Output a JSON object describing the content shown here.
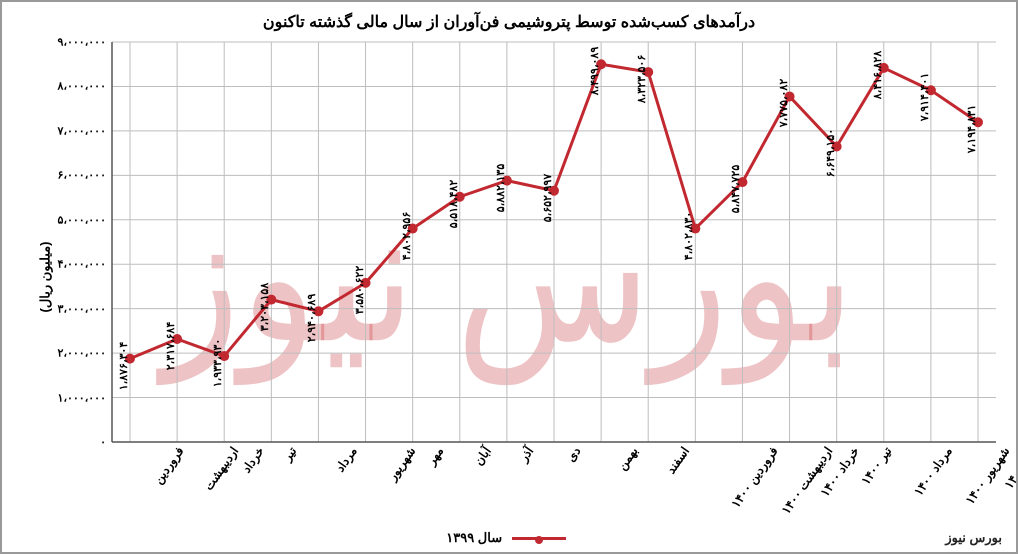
{
  "chart": {
    "type": "line",
    "title": "درآمدهای کسب‌شده توسط پتروشیمی فن‌آوران از سال مالی گذشته تاکنون",
    "y_axis_label": "(میلیون ریال)",
    "legend_label": "سال ۱۳۹۹",
    "footer_brand": "بورس نیوز",
    "watermark_text": "بورس نیوز",
    "line_color": "#c2282f",
    "marker_color": "#c2282f",
    "marker_radius": 5,
    "line_width": 3,
    "grid_color": "#bdbdbd",
    "grid_width": 1,
    "background_color": "#ffffff",
    "title_fontsize": 16,
    "label_fontsize": 12,
    "tick_fontsize": 11,
    "ylim": [
      0,
      9000000
    ],
    "y_ticks": [
      {
        "v": 0,
        "label": "۰"
      },
      {
        "v": 1000000,
        "label": "۱،۰۰۰،۰۰۰"
      },
      {
        "v": 2000000,
        "label": "۲،۰۰۰،۰۰۰"
      },
      {
        "v": 3000000,
        "label": "۳،۰۰۰،۰۰۰"
      },
      {
        "v": 4000000,
        "label": "۴،۰۰۰،۰۰۰"
      },
      {
        "v": 5000000,
        "label": "۵،۰۰۰،۰۰۰"
      },
      {
        "v": 6000000,
        "label": "۶،۰۰۰،۰۰۰"
      },
      {
        "v": 7000000,
        "label": "۷،۰۰۰،۰۰۰"
      },
      {
        "v": 8000000,
        "label": "۸،۰۰۰،۰۰۰"
      },
      {
        "v": 9000000,
        "label": "۹،۰۰۰،۰۰۰"
      }
    ],
    "categories": [
      "فروردین",
      "اردیبهشت",
      "خرداد",
      "تیر",
      "مرداد",
      "شهریور",
      "مهر",
      "آبان",
      "آذر",
      "دی",
      "بهمن",
      "اسفند",
      "فروردین ۱۴۰۰",
      "اردیبهشت ۱۴۰۰",
      "خرداد ۱۴۰۰",
      "تیر ۱۴۰۰",
      "مرداد ۱۴۰۰",
      "شهریور ۱۴۰۰",
      "مهر ۱۴۰۰"
    ],
    "values": [
      1876304,
      2317684,
      1933930,
      3203158,
      2940689,
      3580622,
      4802956,
      5518482,
      5882135,
      5652997,
      8499089,
      8323506,
      4802830,
      5847725,
      7775082,
      6649150,
      8416828,
      7914401,
      7194831
    ],
    "value_labels": [
      "۱،۸۷۶،۳۰۴",
      "۲،۳۱۷،۶۸۴",
      "۱،۹۳۳،۹۳۰",
      "۳،۲۰۳،۱۵۸",
      "۲،۹۴۰،۶۸۹",
      "۳،۵۸۰،۶۲۲",
      "۴،۸۰۲،۹۵۶",
      "۵،۵۱۸،۴۸۲",
      "۵،۸۸۲،۱۳۵",
      "۵،۶۵۲،۹۹۷",
      "۸،۴۹۹،۰۸۹",
      "۸،۳۲۳،۵۰۶",
      "۴،۸۰۲،۸۳۰",
      "۵،۸۴۷،۷۲۵",
      "۷،۷۷۵،۰۸۲",
      "۶،۶۴۹،۱۵۰",
      "۸،۴۱۶،۸۲۸",
      "۷،۹۱۴،۴۰۱",
      "۷،۱۹۴،۸۳۱"
    ]
  }
}
